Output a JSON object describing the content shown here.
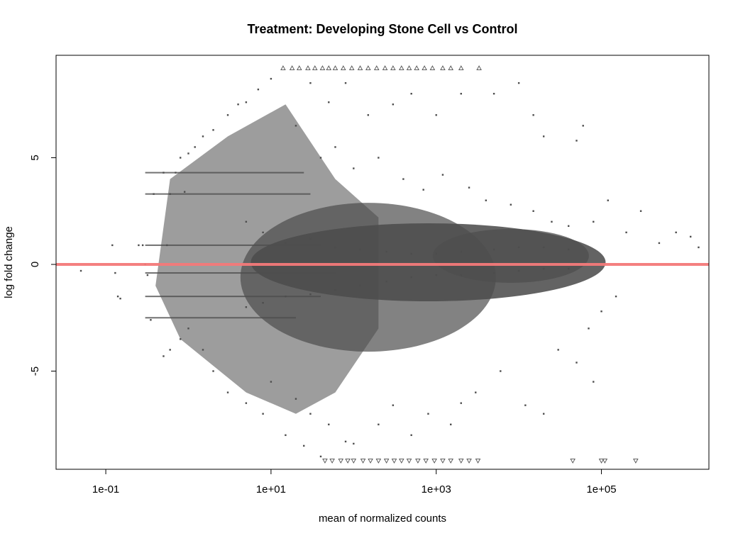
{
  "chart_data": {
    "type": "scatter",
    "plot_kind": "MA plot",
    "title": "Treatment: Developing Stone Cell vs Control",
    "xlabel": "mean of normalized counts",
    "ylabel": "log fold change",
    "x_scale": "log10",
    "xlim": [
      0.025,
      2000000
    ],
    "ylim": [
      -9.6,
      9.8
    ],
    "x_ticks": [
      {
        "value": 0.1,
        "label": "1e-01"
      },
      {
        "value": 10,
        "label": "1e+01"
      },
      {
        "value": 1000,
        "label": "1e+03"
      },
      {
        "value": 100000,
        "label": "1e+05"
      }
    ],
    "y_ticks": [
      {
        "value": -5,
        "label": "-5"
      },
      {
        "value": 0,
        "label": "0"
      },
      {
        "value": 5,
        "label": "5"
      }
    ],
    "grid": false,
    "legend": "none",
    "reference_line": {
      "y": 0,
      "color": "#ff7f7f"
    },
    "colors": {
      "points": "#4d4d4d",
      "reference_line": "#f47a7a",
      "axis": "#000000"
    },
    "clipped_marker_y": {
      "top": 9.2,
      "bottom": -9.2
    },
    "series": [
      {
        "marker": "dot",
        "points": [
          [
            0.05,
            -0.3
          ],
          [
            0.12,
            0.9
          ],
          [
            0.13,
            -0.4
          ],
          [
            0.14,
            -1.5
          ],
          [
            0.15,
            -1.6
          ],
          [
            0.25,
            0.9
          ],
          [
            0.28,
            0.9
          ],
          [
            0.3,
            0.0
          ],
          [
            0.32,
            -0.5
          ],
          [
            0.35,
            -2.6
          ],
          [
            0.38,
            3.3
          ],
          [
            0.5,
            4.3
          ],
          [
            0.55,
            0.9
          ],
          [
            0.6,
            3.3
          ],
          [
            0.7,
            4.3
          ],
          [
            0.8,
            5.0
          ],
          [
            0.9,
            3.4
          ],
          [
            1.0,
            5.2
          ],
          [
            1.2,
            5.5
          ],
          [
            1.5,
            6.0
          ],
          [
            2.0,
            6.3
          ],
          [
            3.0,
            7.0
          ],
          [
            4.0,
            7.5
          ],
          [
            5.0,
            7.6
          ],
          [
            7.0,
            8.2
          ],
          [
            10.0,
            8.7
          ],
          [
            0.5,
            -4.3
          ],
          [
            0.6,
            -4.0
          ],
          [
            0.8,
            -3.5
          ],
          [
            1.0,
            -3.0
          ],
          [
            1.5,
            -4.0
          ],
          [
            2.0,
            -5.0
          ],
          [
            3.0,
            -6.0
          ],
          [
            5.0,
            -6.5
          ],
          [
            8.0,
            -7.0
          ],
          [
            15.0,
            -8.0
          ],
          [
            25.0,
            -8.5
          ],
          [
            40.0,
            -9.0
          ],
          [
            10.0,
            -5.5
          ],
          [
            20.0,
            -6.3
          ],
          [
            30.0,
            -7.0
          ],
          [
            50.0,
            -7.5
          ],
          [
            80.0,
            -8.3
          ],
          [
            100.0,
            -8.4
          ],
          [
            200.0,
            -7.5
          ],
          [
            300.0,
            -6.6
          ],
          [
            500.0,
            -8.0
          ],
          [
            800.0,
            -7.0
          ],
          [
            1500.0,
            -7.5
          ],
          [
            2000.0,
            -6.5
          ],
          [
            3000.0,
            -6.0
          ],
          [
            6000.0,
            -5.0
          ],
          [
            12000.0,
            -6.6
          ],
          [
            20000.0,
            -7.0
          ],
          [
            30000.0,
            -4.0
          ],
          [
            50000.0,
            -4.6
          ],
          [
            70000.0,
            -3.0
          ],
          [
            80000.0,
            -5.5
          ],
          [
            100000.0,
            -2.2
          ],
          [
            150000.0,
            -1.5
          ],
          [
            200000.0,
            1.5
          ],
          [
            300000.0,
            2.5
          ],
          [
            500000.0,
            1.0
          ],
          [
            800000.0,
            1.5
          ],
          [
            1200000.0,
            1.3
          ],
          [
            1500000.0,
            0.8
          ],
          [
            50000.0,
            5.8
          ],
          [
            80000.0,
            2.0
          ],
          [
            120000.0,
            3.0
          ],
          [
            60000.0,
            6.5
          ],
          [
            20000.0,
            6.0
          ],
          [
            15000.0,
            7.0
          ],
          [
            10000.0,
            8.5
          ],
          [
            5000.0,
            8.0
          ],
          [
            2000.0,
            8.0
          ],
          [
            1000.0,
            7.0
          ],
          [
            500.0,
            8.0
          ],
          [
            300.0,
            7.5
          ],
          [
            150.0,
            7.0
          ],
          [
            80.0,
            8.5
          ],
          [
            50.0,
            7.6
          ],
          [
            30.0,
            8.5
          ],
          [
            20.0,
            6.5
          ],
          [
            40.0,
            5.0
          ],
          [
            60.0,
            5.5
          ],
          [
            100.0,
            4.5
          ],
          [
            200.0,
            5.0
          ],
          [
            400.0,
            4.0
          ],
          [
            700.0,
            3.5
          ],
          [
            1200.0,
            4.2
          ],
          [
            2500.0,
            3.6
          ],
          [
            4000.0,
            3.0
          ],
          [
            8000.0,
            2.8
          ],
          [
            15000.0,
            2.5
          ],
          [
            25000.0,
            2.0
          ],
          [
            40000.0,
            1.8
          ],
          [
            5.0,
            2.0
          ],
          [
            8.0,
            1.5
          ],
          [
            15.0,
            1.0
          ],
          [
            30.0,
            1.2
          ],
          [
            60.0,
            0.8
          ],
          [
            120.0,
            0.7
          ],
          [
            250.0,
            0.6
          ],
          [
            500.0,
            0.5
          ],
          [
            1000.0,
            0.5
          ],
          [
            2000.0,
            0.6
          ],
          [
            5000.0,
            0.7
          ],
          [
            10000.0,
            0.8
          ],
          [
            20000.0,
            0.8
          ],
          [
            40000.0,
            0.7
          ],
          [
            5.0,
            -2.0
          ],
          [
            8.0,
            -1.8
          ],
          [
            15.0,
            -1.5
          ],
          [
            30.0,
            -1.4
          ],
          [
            60.0,
            -1.2
          ],
          [
            120.0,
            -1.0
          ],
          [
            250.0,
            -0.8
          ],
          [
            500.0,
            -0.6
          ],
          [
            1000.0,
            -0.5
          ],
          [
            2000.0,
            -0.5
          ],
          [
            5000.0,
            -0.4
          ],
          [
            10000.0,
            -0.3
          ],
          [
            20000.0,
            -0.2
          ],
          [
            40000.0,
            -0.2
          ]
        ]
      },
      {
        "marker": "triangle-up",
        "points": [
          [
            14,
            9.2
          ],
          [
            18,
            9.2
          ],
          [
            22,
            9.2
          ],
          [
            28,
            9.2
          ],
          [
            34,
            9.2
          ],
          [
            42,
            9.2
          ],
          [
            50,
            9.2
          ],
          [
            60,
            9.2
          ],
          [
            75,
            9.2
          ],
          [
            95,
            9.2
          ],
          [
            120,
            9.2
          ],
          [
            150,
            9.2
          ],
          [
            190,
            9.2
          ],
          [
            240,
            9.2
          ],
          [
            300,
            9.2
          ],
          [
            380,
            9.2
          ],
          [
            470,
            9.2
          ],
          [
            580,
            9.2
          ],
          [
            720,
            9.2
          ],
          [
            900,
            9.2
          ],
          [
            1200,
            9.2
          ],
          [
            1500,
            9.2
          ],
          [
            2000,
            9.2
          ],
          [
            3300,
            9.2
          ]
        ]
      },
      {
        "marker": "triangle-down",
        "points": [
          [
            45,
            -9.2
          ],
          [
            55,
            -9.2
          ],
          [
            70,
            -9.2
          ],
          [
            85,
            -9.2
          ],
          [
            100,
            -9.2
          ],
          [
            130,
            -9.2
          ],
          [
            160,
            -9.2
          ],
          [
            200,
            -9.2
          ],
          [
            250,
            -9.2
          ],
          [
            310,
            -9.2
          ],
          [
            380,
            -9.2
          ],
          [
            470,
            -9.2
          ],
          [
            600,
            -9.2
          ],
          [
            750,
            -9.2
          ],
          [
            950,
            -9.2
          ],
          [
            1200,
            -9.2
          ],
          [
            1500,
            -9.2
          ],
          [
            2000,
            -9.2
          ],
          [
            2500,
            -9.2
          ],
          [
            3200,
            -9.2
          ],
          [
            45000,
            -9.2
          ],
          [
            100000,
            -9.2
          ],
          [
            110000,
            -9.2
          ],
          [
            260000,
            -9.2
          ]
        ]
      }
    ]
  }
}
